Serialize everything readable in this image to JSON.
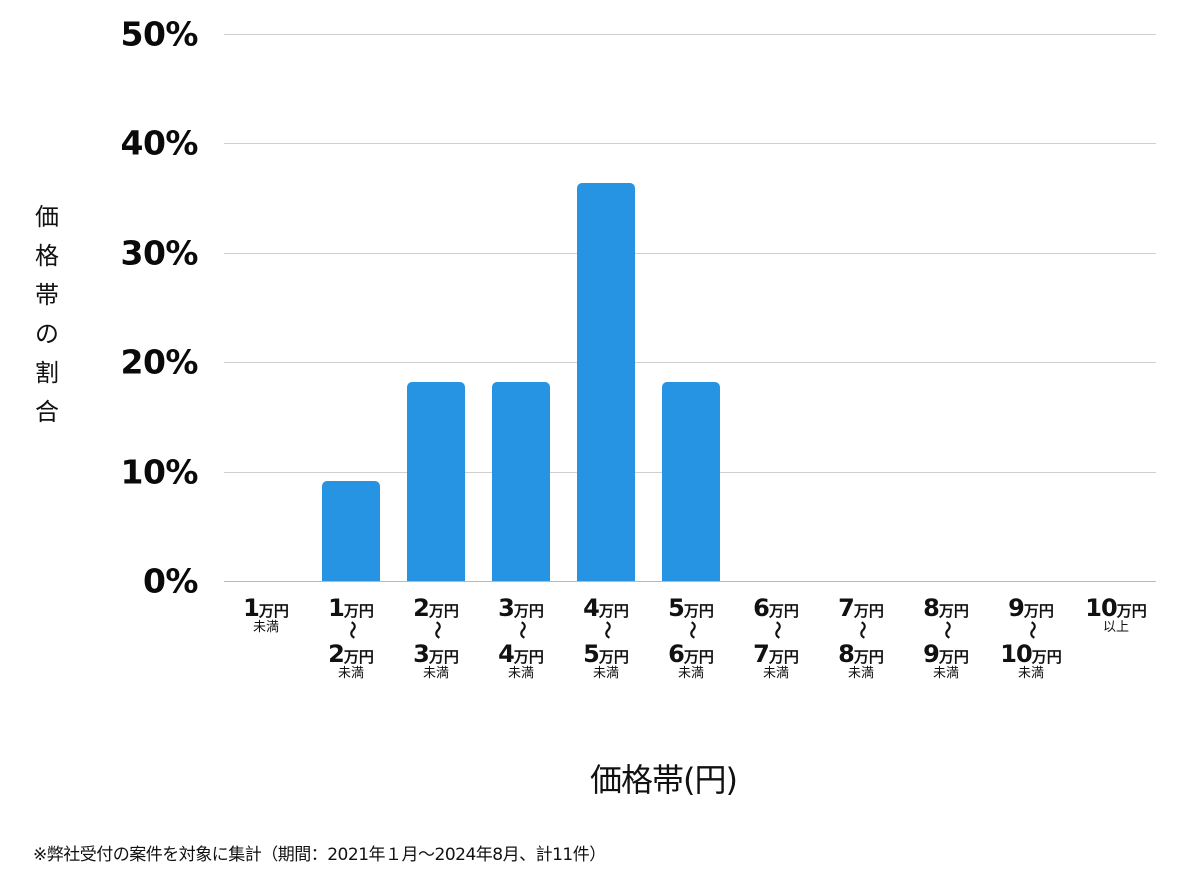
{
  "chart_data": {
    "type": "bar",
    "title": "",
    "xlabel": "価格帯(円)",
    "ylabel": "価格帯の割合",
    "ylim": [
      0,
      50
    ],
    "yticks": [
      "0%",
      "10%",
      "20%",
      "30%",
      "40%",
      "50%"
    ],
    "grid": true,
    "legend": null,
    "bar_color": "#2793e3",
    "categories": [
      "1万円未満",
      "1万円〜2万円未満",
      "2万円〜3万円未満",
      "3万円〜4万円未満",
      "4万円〜5万円未満",
      "5万円〜6万円未満",
      "6万円〜7万円未満",
      "7万円〜8万円未満",
      "8万円〜9万円未満",
      "9万円〜10万円未満",
      "10万円以上"
    ],
    "values": [
      0,
      9.1,
      18.2,
      18.2,
      36.4,
      18.2,
      0,
      0,
      0,
      0,
      0
    ],
    "footnote": "※弊社受付の案件を対象に集計（期間：2021年１月〜2024年8月、計11件）"
  },
  "axis": {
    "y_ticks": [
      {
        "label": "50%",
        "value": 50
      },
      {
        "label": "40%",
        "value": 40
      },
      {
        "label": "30%",
        "value": 30
      },
      {
        "label": "20%",
        "value": 20
      },
      {
        "label": "10%",
        "value": 10
      },
      {
        "label": "0%",
        "value": 0
      }
    ],
    "y_title_chars": [
      "価",
      "格",
      "帯",
      "の",
      "割",
      "合"
    ],
    "x_title": "価格帯(円)"
  },
  "x_labels": [
    {
      "from_num": "1",
      "from_unit": "万円",
      "tilde": "",
      "to_num": "",
      "to_unit": "",
      "sub": "未満"
    },
    {
      "from_num": "1",
      "from_unit": "万円",
      "tilde": "〜",
      "to_num": "2",
      "to_unit": "万円",
      "sub": "未満"
    },
    {
      "from_num": "2",
      "from_unit": "万円",
      "tilde": "〜",
      "to_num": "3",
      "to_unit": "万円",
      "sub": "未満"
    },
    {
      "from_num": "3",
      "from_unit": "万円",
      "tilde": "〜",
      "to_num": "4",
      "to_unit": "万円",
      "sub": "未満"
    },
    {
      "from_num": "4",
      "from_unit": "万円",
      "tilde": "〜",
      "to_num": "5",
      "to_unit": "万円",
      "sub": "未満"
    },
    {
      "from_num": "5",
      "from_unit": "万円",
      "tilde": "〜",
      "to_num": "6",
      "to_unit": "万円",
      "sub": "未満"
    },
    {
      "from_num": "6",
      "from_unit": "万円",
      "tilde": "〜",
      "to_num": "7",
      "to_unit": "万円",
      "sub": "未満"
    },
    {
      "from_num": "7",
      "from_unit": "万円",
      "tilde": "〜",
      "to_num": "8",
      "to_unit": "万円",
      "sub": "未満"
    },
    {
      "from_num": "8",
      "from_unit": "万円",
      "tilde": "〜",
      "to_num": "9",
      "to_unit": "万円",
      "sub": "未満"
    },
    {
      "from_num": "9",
      "from_unit": "万円",
      "tilde": "〜",
      "to_num": "10",
      "to_unit": "万円",
      "sub": "未満"
    },
    {
      "from_num": "10",
      "from_unit": "万円",
      "tilde": "",
      "to_num": "",
      "to_unit": "",
      "sub": "以上"
    }
  ],
  "footnote": "※弊社受付の案件を対象に集計（期間：2021年１月〜2024年8月、計11件）"
}
